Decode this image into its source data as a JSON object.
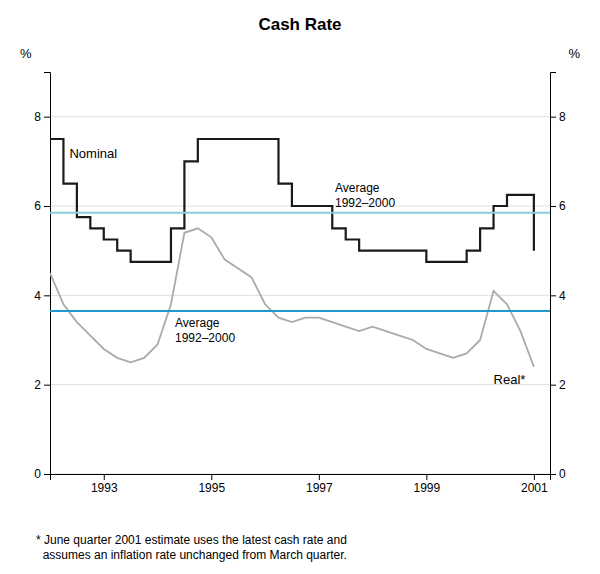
{
  "chart_data": {
    "type": "line",
    "title": "Cash Rate",
    "ylabel": "%",
    "y2label": "%",
    "footnote": "* June quarter 2001 estimate uses the latest cash rate and\n  assumes an inflation rate unchanged from March quarter.",
    "x": [
      1992.0,
      1992.25,
      1992.5,
      1992.75,
      1993.0,
      1993.25,
      1993.5,
      1993.75,
      1994.0,
      1994.25,
      1994.5,
      1994.75,
      1995.0,
      1995.25,
      1995.5,
      1995.75,
      1996.0,
      1996.25,
      1996.5,
      1996.75,
      1997.0,
      1997.25,
      1997.5,
      1997.75,
      1998.0,
      1998.25,
      1998.5,
      1998.75,
      1999.0,
      1999.25,
      1999.5,
      1999.75,
      2000.0,
      2000.25,
      2000.5,
      2000.75,
      2001.0
    ],
    "series": [
      {
        "name": "Nominal",
        "color": "#1a1a1a",
        "line_style": "step",
        "values": [
          7.5,
          6.5,
          5.75,
          5.5,
          5.25,
          5.0,
          4.75,
          4.75,
          4.75,
          5.5,
          7.0,
          7.5,
          7.5,
          7.5,
          7.5,
          7.5,
          7.5,
          6.5,
          6.0,
          6.0,
          6.0,
          5.5,
          5.25,
          5.0,
          5.0,
          5.0,
          5.0,
          5.0,
          4.75,
          4.75,
          4.75,
          5.0,
          5.5,
          6.0,
          6.25,
          6.25,
          5.0
        ]
      },
      {
        "name": "Real*",
        "color": "#aaaaaa",
        "line_style": "solid",
        "values": [
          4.5,
          3.8,
          3.4,
          3.1,
          2.8,
          2.6,
          2.5,
          2.6,
          2.9,
          3.8,
          5.4,
          5.5,
          5.3,
          4.8,
          4.6,
          4.4,
          3.8,
          3.5,
          3.4,
          3.5,
          3.5,
          3.4,
          3.3,
          3.2,
          3.3,
          3.2,
          3.1,
          3.0,
          2.8,
          2.7,
          2.6,
          2.7,
          3.0,
          4.1,
          3.8,
          3.2,
          2.4
        ]
      }
    ],
    "hlines": [
      {
        "value": 5.85,
        "color": "#88ccdd",
        "label": "Average\n1992–2000"
      },
      {
        "value": 3.65,
        "color": "#2299cc",
        "label": "Average\n1992–2000"
      }
    ],
    "xlim": [
      1992.0,
      2001.3
    ],
    "xticks": [
      1993,
      1995,
      1997,
      1999,
      2001
    ],
    "ylim": [
      0,
      9
    ],
    "yticks": [
      0,
      2,
      4,
      6,
      8
    ],
    "y2lim": [
      0,
      9
    ],
    "y2ticks": [
      0,
      2,
      4,
      6,
      8
    ],
    "grid": true
  }
}
